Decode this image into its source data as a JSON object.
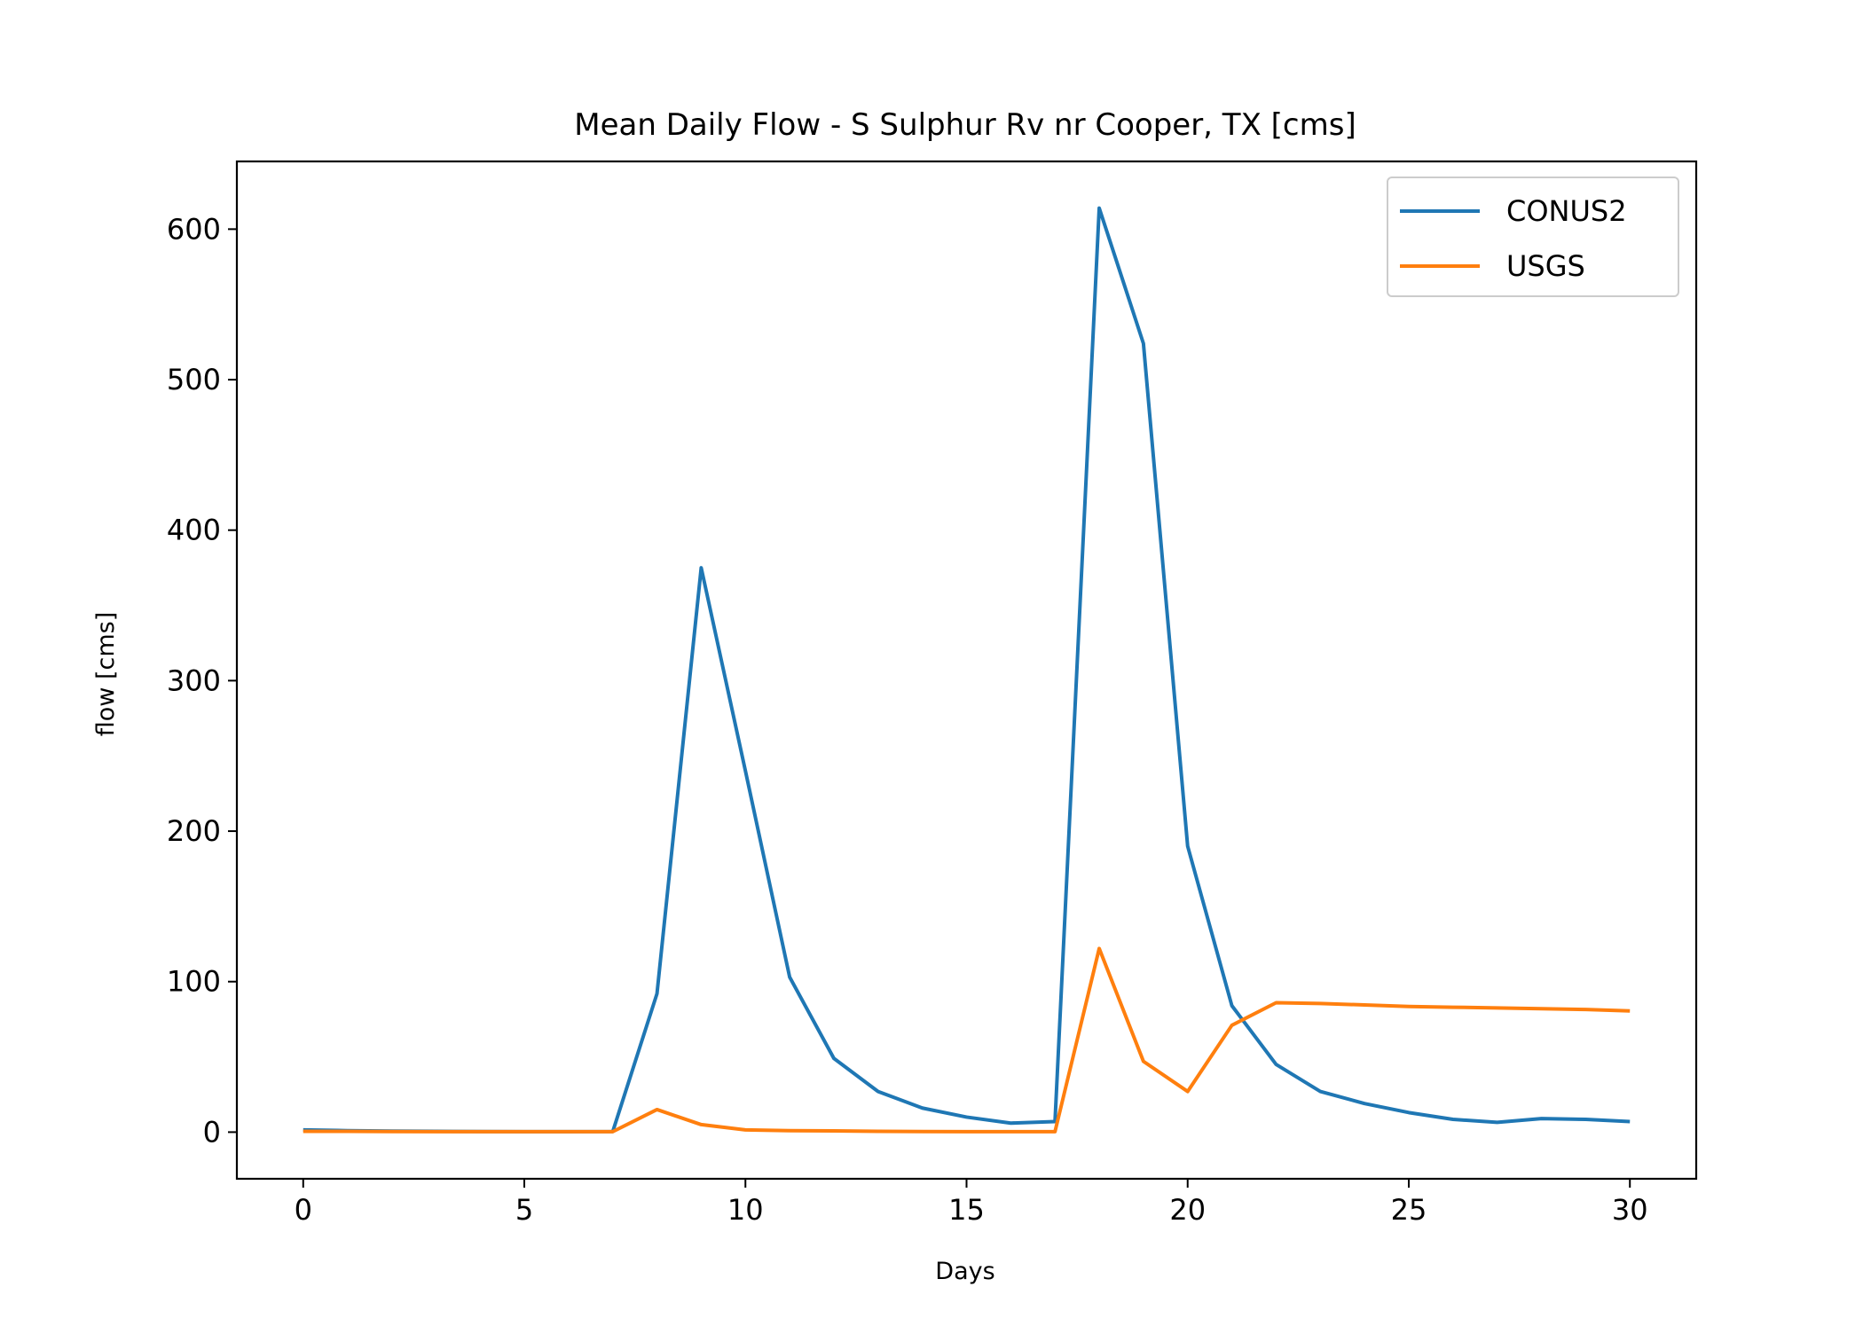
{
  "chart_data": {
    "type": "line",
    "title": "Mean Daily Flow - S Sulphur Rv nr Cooper, TX [cms]",
    "xlabel": "Days",
    "ylabel": "flow [cms]",
    "xlim": [
      -1.5,
      31.5
    ],
    "ylim": [
      -31,
      645
    ],
    "xticks": [
      0,
      5,
      10,
      15,
      20,
      25,
      30
    ],
    "yticks": [
      0,
      100,
      200,
      300,
      400,
      500,
      600
    ],
    "grid": false,
    "legend_position": "top-right",
    "x": [
      0,
      1,
      2,
      3,
      4,
      5,
      6,
      7,
      8,
      9,
      10,
      11,
      12,
      13,
      14,
      15,
      16,
      17,
      18,
      19,
      20,
      21,
      22,
      23,
      24,
      25,
      26,
      27,
      28,
      29,
      30
    ],
    "series": [
      {
        "name": "CONUS2",
        "color": "#1f77b4",
        "values": [
          1.5,
          1,
          0.7,
          0.5,
          0.4,
          0.3,
          0.3,
          0.4,
          92,
          375,
          240,
          103,
          49,
          27,
          16,
          10,
          6,
          7,
          614,
          524,
          190,
          84,
          45,
          27,
          19,
          13,
          8.5,
          6.5,
          9,
          8.5,
          7
        ]
      },
      {
        "name": "USGS",
        "color": "#ff7f0e",
        "values": [
          0.5,
          0.5,
          0.4,
          0.3,
          0.3,
          0.3,
          0.3,
          0.3,
          15,
          5,
          1.5,
          1,
          0.8,
          0.5,
          0.4,
          0.3,
          0.3,
          0.3,
          122,
          47,
          27,
          71,
          86,
          85.5,
          84.5,
          83.5,
          83,
          82.5,
          82,
          81.5,
          80.5
        ]
      }
    ]
  }
}
